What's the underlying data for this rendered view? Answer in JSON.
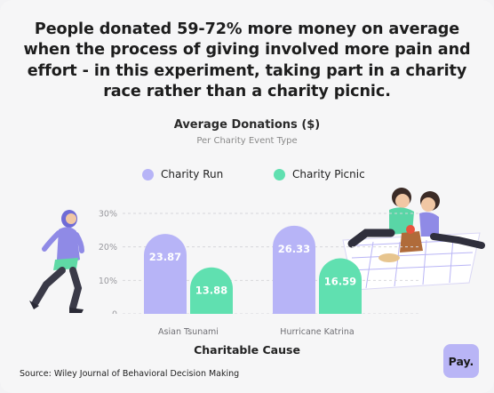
{
  "headline": "People donated 59-72% more money on average when the process of giving involved more pain and effort - in this  experiment, taking part in a charity race rather than a charity picnic.",
  "source": "Source: Wiley Journal of Behavioral Decision Making",
  "logo_text": "Pay.",
  "colors": {
    "run": "#b7b4f7",
    "picnic": "#60e0b0",
    "background": "#f6f6f7"
  },
  "chart_data": {
    "type": "bar",
    "title": "Average Donations ($)",
    "subtitle": "Per Charity Event Type",
    "xlabel": "Charitable Cause",
    "ylabel": "",
    "categories": [
      "Asian Tsunami",
      "Hurricane Katrina"
    ],
    "series": [
      {
        "name": "Charity Run",
        "values": [
          23.87,
          26.33
        ]
      },
      {
        "name": "Charity Picnic",
        "values": [
          13.88,
          16.59
        ]
      }
    ],
    "y_ticks": [
      "0",
      "10%",
      "20%",
      "30%"
    ],
    "ylim": [
      0,
      30
    ],
    "legend": "top-center",
    "grid": true
  }
}
